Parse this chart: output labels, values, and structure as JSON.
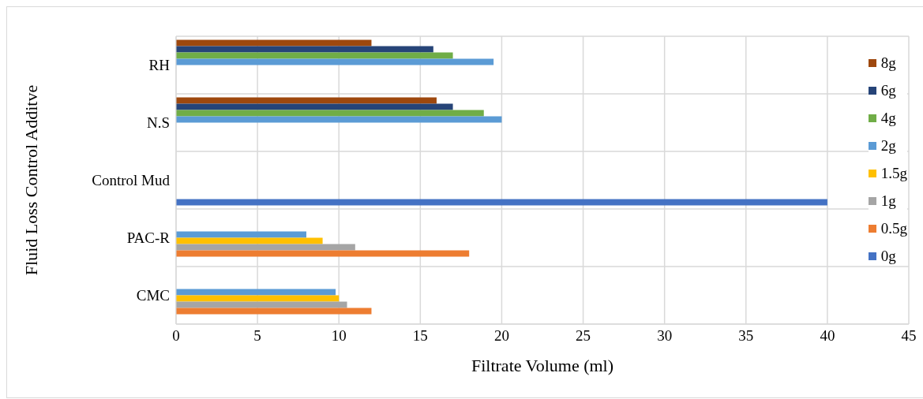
{
  "chart_data": {
    "type": "bar",
    "orientation": "horizontal",
    "xlabel": "Filtrate Volume (ml)",
    "ylabel": "Fluid Loss Control Additve",
    "categories": [
      "RH",
      "N.S",
      "Control Mud",
      "PAC-R",
      "CMC"
    ],
    "series": [
      {
        "name": "0g",
        "color": "#4472c4",
        "values": [
          null,
          null,
          40,
          null,
          null
        ]
      },
      {
        "name": "0.5g",
        "color": "#ed7d31",
        "values": [
          null,
          null,
          null,
          18,
          12
        ]
      },
      {
        "name": "1g",
        "color": "#a5a5a5",
        "values": [
          null,
          null,
          null,
          11,
          10.5
        ]
      },
      {
        "name": "1.5g",
        "color": "#ffc000",
        "values": [
          null,
          null,
          null,
          9,
          10
        ]
      },
      {
        "name": "2g",
        "color": "#5b9bd5",
        "values": [
          19.5,
          20,
          null,
          8,
          9.8
        ]
      },
      {
        "name": "4g",
        "color": "#70ad47",
        "values": [
          17,
          18.9,
          null,
          null,
          null
        ]
      },
      {
        "name": "6g",
        "color": "#264478",
        "values": [
          15.8,
          17,
          null,
          null,
          null
        ]
      },
      {
        "name": "8g",
        "color": "#9e480e",
        "values": [
          12,
          16,
          null,
          null,
          null
        ]
      }
    ],
    "xlim": [
      0,
      45
    ],
    "xticks": [
      0,
      5,
      10,
      15,
      20,
      25,
      30,
      35,
      40,
      45
    ],
    "grid": true,
    "legend": "right"
  }
}
